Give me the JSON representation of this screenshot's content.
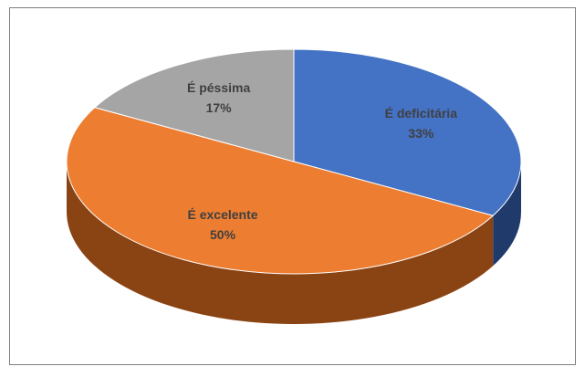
{
  "chart_data": {
    "type": "pie3d",
    "categories": [
      "É deficitária",
      "É excelente",
      "É péssima"
    ],
    "values": [
      33,
      50,
      17
    ],
    "value_labels": [
      "33%",
      "50%",
      "17%"
    ],
    "colors": [
      "#4472c4",
      "#ed7d31",
      "#a5a5a5"
    ],
    "side_colors": [
      "#1f3a6b",
      "#8a4313",
      "#5f5f5f"
    ]
  }
}
